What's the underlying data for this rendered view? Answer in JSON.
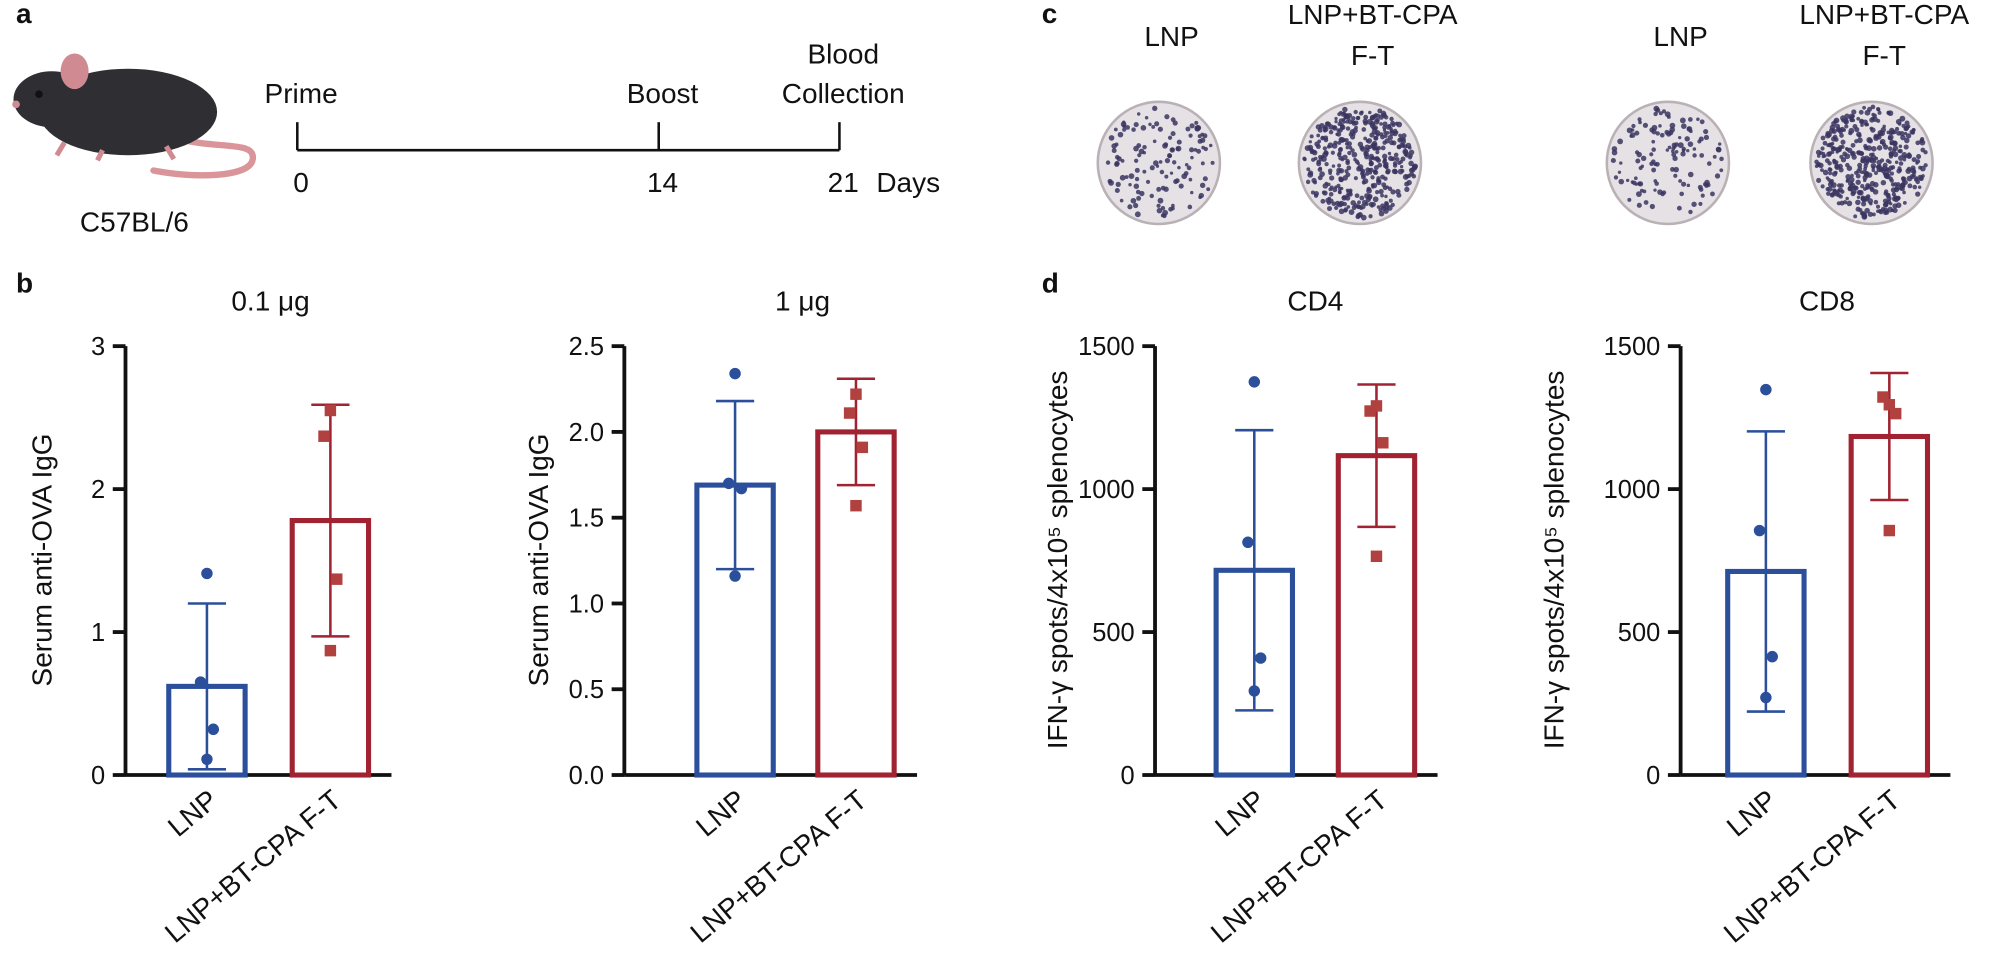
{
  "panel_labels": [
    "a",
    "b",
    "c",
    "d"
  ],
  "timeline": {
    "strain": "C57BL/6",
    "unit": "Days",
    "events": [
      {
        "label": [
          "Prime"
        ],
        "day": 0
      },
      {
        "label": [
          "Boost"
        ],
        "day": 14
      },
      {
        "label": [
          "Blood",
          "Collection"
        ],
        "day": 21
      }
    ]
  },
  "wells": [
    {
      "label": [
        "LNP"
      ]
    },
    {
      "label": [
        "LNP+BT-CPA",
        "F-T"
      ]
    },
    {
      "label": [
        "LNP"
      ]
    },
    {
      "label": [
        "LNP+BT-CPA",
        "F-T"
      ]
    }
  ],
  "chart_data": [
    {
      "type": "bar",
      "title": "0.1 μg",
      "ylabel": "Serum anti-OVA IgG",
      "categories": [
        "LNP",
        "LNP+BT-CPA F-T"
      ],
      "values": [
        0.62,
        1.78
      ],
      "errors": [
        0.58,
        0.81
      ],
      "points": [
        [
          1.41,
          0.65,
          0.32,
          0.11
        ],
        [
          2.55,
          2.37,
          1.37,
          0.87
        ]
      ],
      "colors": [
        "#2b4f9b",
        "#a12230"
      ],
      "ylim": [
        0,
        3
      ],
      "yticks": [
        0,
        1,
        2,
        3
      ]
    },
    {
      "type": "bar",
      "title": "1 μg",
      "ylabel": "Serum anti-OVA IgG",
      "categories": [
        "LNP",
        "LNP+BT-CPA F-T"
      ],
      "values": [
        1.69,
        2.0
      ],
      "errors": [
        0.49,
        0.31
      ],
      "points": [
        [
          2.34,
          1.7,
          1.67,
          1.16
        ],
        [
          2.22,
          2.11,
          1.91,
          1.57
        ]
      ],
      "colors": [
        "#2b4f9b",
        "#a12230"
      ],
      "ylim": [
        0,
        2.5
      ],
      "yticks": [
        {
          "value": 0,
          "label": "0.0"
        },
        {
          "value": 0.5,
          "label": "0.5"
        },
        {
          "value": 1,
          "label": "1.0"
        },
        {
          "value": 1.5,
          "label": "1.5"
        },
        {
          "value": 2,
          "label": "2.0"
        },
        {
          "value": 2.5,
          "label": "2.5"
        }
      ]
    },
    {
      "type": "bar",
      "title": "CD4",
      "ylabel": "IFN-γ spots/4x10⁵ splenocytes",
      "categories": [
        "LNP",
        "LNP+BT-CPA F-T"
      ],
      "values": [
        716,
        1117
      ],
      "errors": [
        490,
        249
      ],
      "points": [
        [
          1375,
          814,
          409,
          294
        ],
        [
          1291,
          1273,
          1162,
          765
        ]
      ],
      "colors": [
        "#2b4f9b",
        "#a12230"
      ],
      "ylim": [
        0,
        1500
      ],
      "yticks": [
        0,
        500,
        1000,
        1500
      ]
    },
    {
      "type": "bar",
      "title": "CD8",
      "ylabel": "IFN-γ spots/4x10⁵ splenocytes",
      "categories": [
        "LNP",
        "LNP+BT-CPA F-T"
      ],
      "values": [
        712,
        1184
      ],
      "errors": [
        490,
        222
      ],
      "points": [
        [
          1348,
          855,
          414,
          271
        ],
        [
          1295,
          1322,
          1264,
          855
        ]
      ],
      "colors": [
        "#2b4f9b",
        "#a12230"
      ],
      "ylim": [
        0,
        1500
      ],
      "yticks": [
        0,
        500,
        1000,
        1500
      ]
    }
  ]
}
